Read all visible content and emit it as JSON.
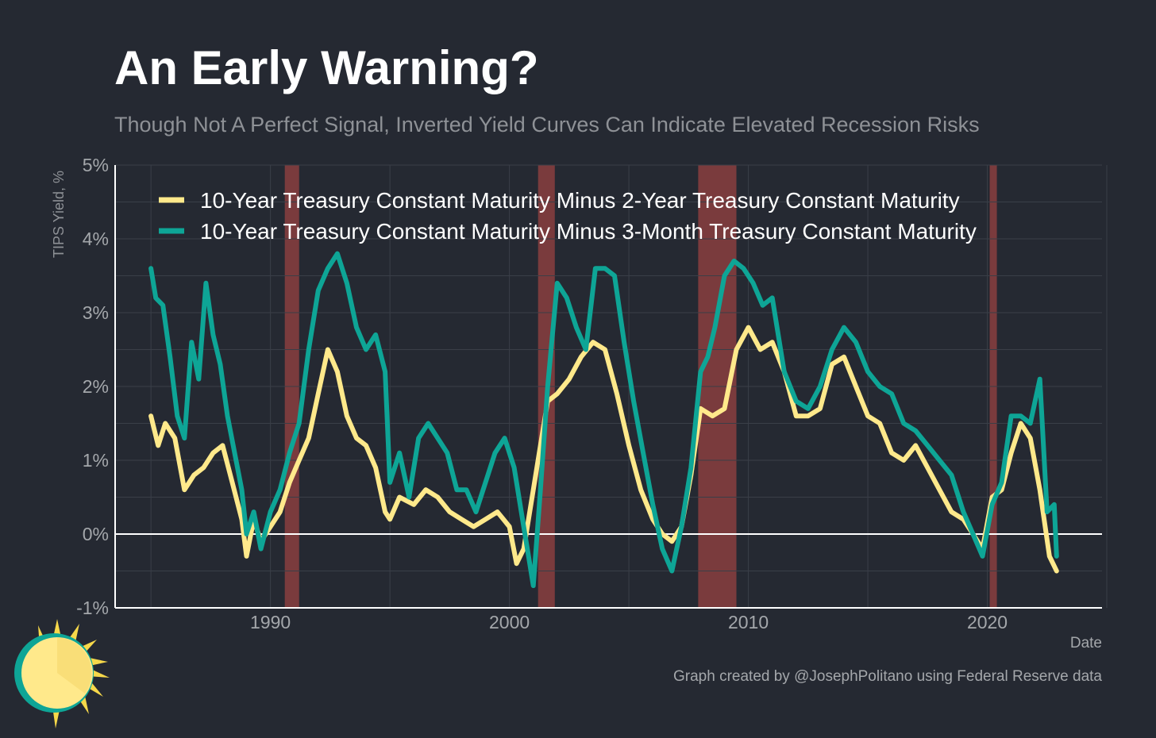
{
  "chart_data": {
    "type": "line",
    "title": "An Early Warning?",
    "subtitle": "Though Not A Perfect Signal, Inverted Yield Curves Can Indicate Elevated Recession Risks",
    "xlabel": "Date",
    "ylabel": "TIPS Yield, %",
    "ylim": [
      -1,
      5
    ],
    "xlim": [
      1983.5,
      2024.8
    ],
    "y_ticks": [
      "-1%",
      "0%",
      "1%",
      "2%",
      "3%",
      "4%",
      "5%"
    ],
    "x_ticks": [
      "1990",
      "2000",
      "2010",
      "2020"
    ],
    "legend_position": "top-left",
    "recessions": [
      [
        1990.6,
        1991.2
      ],
      [
        2001.2,
        2001.9
      ],
      [
        2007.9,
        2009.5
      ],
      [
        2020.1,
        2020.4
      ]
    ],
    "zero_line": 0,
    "series": [
      {
        "name": "10-Year Treasury Constant Maturity Minus 2-Year Treasury Constant Maturity",
        "color": "#ffe98b",
        "x": [
          1985.0,
          1985.3,
          1985.6,
          1986.0,
          1986.4,
          1986.8,
          1987.2,
          1987.6,
          1988.0,
          1988.4,
          1988.8,
          1989.0,
          1989.3,
          1989.6,
          1990.0,
          1990.4,
          1990.8,
          1991.2,
          1991.6,
          1992.0,
          1992.4,
          1992.8,
          1993.2,
          1993.6,
          1994.0,
          1994.4,
          1994.8,
          1995.0,
          1995.4,
          1996.0,
          1996.5,
          1997.0,
          1997.5,
          1998.0,
          1998.5,
          1999.0,
          1999.5,
          2000.0,
          2000.3,
          2000.6,
          2001.0,
          2001.3,
          2001.6,
          2002.0,
          2002.5,
          2003.0,
          2003.5,
          2004.0,
          2004.5,
          2005.0,
          2005.5,
          2006.0,
          2006.4,
          2006.8,
          2007.2,
          2007.6,
          2008.0,
          2008.5,
          2009.0,
          2009.5,
          2010.0,
          2010.5,
          2011.0,
          2011.5,
          2012.0,
          2012.5,
          2013.0,
          2013.5,
          2014.0,
          2014.5,
          2015.0,
          2015.5,
          2016.0,
          2016.5,
          2017.0,
          2017.5,
          2018.0,
          2018.5,
          2019.0,
          2019.4,
          2019.8,
          2020.2,
          2020.6,
          2021.0,
          2021.4,
          2021.8,
          2022.2,
          2022.6,
          2022.9
        ],
        "values": [
          1.6,
          1.2,
          1.5,
          1.3,
          0.6,
          0.8,
          0.9,
          1.1,
          1.2,
          0.7,
          0.2,
          -0.3,
          0.2,
          -0.1,
          0.1,
          0.3,
          0.7,
          1.0,
          1.3,
          1.9,
          2.5,
          2.2,
          1.6,
          1.3,
          1.2,
          0.9,
          0.3,
          0.2,
          0.5,
          0.4,
          0.6,
          0.5,
          0.3,
          0.2,
          0.1,
          0.2,
          0.3,
          0.1,
          -0.4,
          -0.2,
          0.6,
          1.2,
          1.8,
          1.9,
          2.1,
          2.4,
          2.6,
          2.5,
          1.9,
          1.2,
          0.6,
          0.2,
          0.0,
          -0.1,
          0.1,
          0.8,
          1.7,
          1.6,
          1.7,
          2.5,
          2.8,
          2.5,
          2.6,
          2.2,
          1.6,
          1.6,
          1.7,
          2.3,
          2.4,
          2.0,
          1.6,
          1.5,
          1.1,
          1.0,
          1.2,
          0.9,
          0.6,
          0.3,
          0.2,
          0.0,
          -0.2,
          0.5,
          0.6,
          1.1,
          1.5,
          1.3,
          0.6,
          -0.3,
          -0.5
        ]
      },
      {
        "name": "10-Year Treasury Constant Maturity Minus 3-Month Treasury Constant Maturity",
        "color": "#0ea596",
        "x": [
          1985.0,
          1985.2,
          1985.5,
          1985.8,
          1986.1,
          1986.4,
          1986.7,
          1987.0,
          1987.3,
          1987.6,
          1987.9,
          1988.2,
          1988.5,
          1988.8,
          1989.0,
          1989.3,
          1989.6,
          1990.0,
          1990.4,
          1990.8,
          1991.2,
          1991.6,
          1992.0,
          1992.4,
          1992.8,
          1993.2,
          1993.6,
          1994.0,
          1994.4,
          1994.8,
          1995.0,
          1995.4,
          1995.8,
          1996.2,
          1996.6,
          1997.0,
          1997.4,
          1997.8,
          1998.2,
          1998.6,
          1999.0,
          1999.4,
          1999.8,
          2000.2,
          2000.5,
          2000.8,
          2001.0,
          2001.3,
          2001.6,
          2002.0,
          2002.4,
          2002.8,
          2003.2,
          2003.6,
          2004.0,
          2004.4,
          2004.8,
          2005.2,
          2005.6,
          2006.0,
          2006.4,
          2006.8,
          2007.2,
          2007.6,
          2008.0,
          2008.3,
          2008.6,
          2009.0,
          2009.4,
          2009.8,
          2010.2,
          2010.6,
          2011.0,
          2011.5,
          2012.0,
          2012.5,
          2013.0,
          2013.5,
          2014.0,
          2014.5,
          2015.0,
          2015.5,
          2016.0,
          2016.5,
          2017.0,
          2017.5,
          2018.0,
          2018.5,
          2019.0,
          2019.4,
          2019.8,
          2020.2,
          2020.6,
          2021.0,
          2021.4,
          2021.8,
          2022.2,
          2022.5,
          2022.8,
          2022.9
        ],
        "values": [
          3.6,
          3.2,
          3.1,
          2.4,
          1.6,
          1.3,
          2.6,
          2.1,
          3.4,
          2.7,
          2.3,
          1.6,
          1.1,
          0.6,
          0.0,
          0.3,
          -0.2,
          0.3,
          0.6,
          1.1,
          1.5,
          2.5,
          3.3,
          3.6,
          3.8,
          3.4,
          2.8,
          2.5,
          2.7,
          2.2,
          0.7,
          1.1,
          0.5,
          1.3,
          1.5,
          1.3,
          1.1,
          0.6,
          0.6,
          0.3,
          0.7,
          1.1,
          1.3,
          0.9,
          0.3,
          -0.3,
          -0.7,
          0.6,
          2.0,
          3.4,
          3.2,
          2.8,
          2.5,
          3.6,
          3.6,
          3.5,
          2.6,
          1.8,
          1.1,
          0.4,
          -0.2,
          -0.5,
          0.1,
          0.9,
          2.2,
          2.4,
          2.8,
          3.5,
          3.7,
          3.6,
          3.4,
          3.1,
          3.2,
          2.2,
          1.8,
          1.7,
          2.0,
          2.5,
          2.8,
          2.6,
          2.2,
          2.0,
          1.9,
          1.5,
          1.4,
          1.2,
          1.0,
          0.8,
          0.3,
          0.0,
          -0.3,
          0.4,
          0.7,
          1.6,
          1.6,
          1.5,
          2.1,
          0.3,
          0.4,
          -0.3
        ]
      }
    ]
  },
  "caption": "Graph created by @JosephPolitano using Federal Reserve data",
  "colors": {
    "background": "#252932",
    "recession": "#7a3b3d",
    "grid": "#3a3f48",
    "axis": "#ffffff"
  },
  "logo_icon": "sun-icon"
}
